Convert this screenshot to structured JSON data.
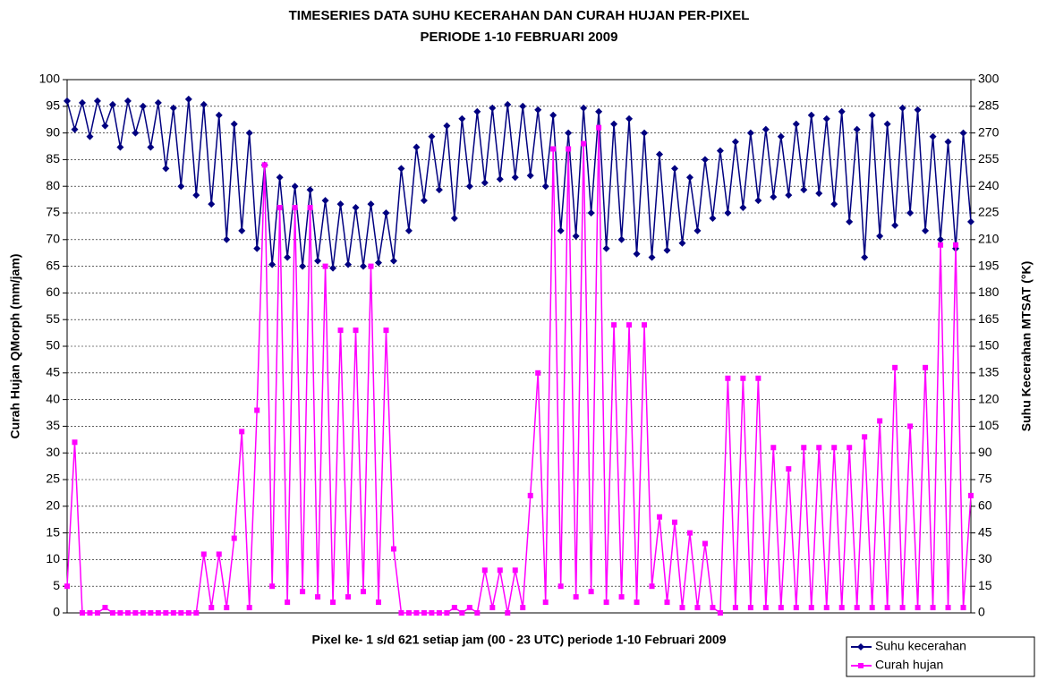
{
  "chart_data": {
    "type": "line",
    "title": "TIMESERIES DATA SUHU KECERAHAN DAN CURAH HUJAN PER-PIXEL",
    "subtitle": "PERIODE 1-10 FEBRUARI 2009",
    "xlabel": "Pixel ke- 1 s/d 621 setiap jam (00 - 23 UTC) periode 1-10 Februari 2009",
    "ylabel": "Curah Hujan QMorph (mm/jam)",
    "y2label": "Suhu Kecerahan MTSAT (°K)",
    "ylim": [
      0,
      100
    ],
    "yticks": [
      0,
      5,
      10,
      15,
      20,
      25,
      30,
      35,
      40,
      45,
      50,
      55,
      60,
      65,
      70,
      75,
      80,
      85,
      90,
      95,
      100
    ],
    "y2lim": [
      0,
      300
    ],
    "y2ticks": [
      0,
      15,
      30,
      45,
      60,
      75,
      90,
      105,
      120,
      135,
      150,
      165,
      180,
      195,
      210,
      225,
      240,
      255,
      270,
      285,
      300
    ],
    "grid": true,
    "legend": "bottom-right",
    "series": [
      {
        "name": "Suhu kecerahan",
        "color": "#000080",
        "marker": "diamond",
        "axis": "y2",
        "values": [
          288,
          272,
          287,
          268,
          288,
          274,
          286,
          262,
          288,
          270,
          285,
          262,
          287,
          250,
          284,
          240,
          289,
          235,
          286,
          230,
          280,
          210,
          275,
          215,
          270,
          205,
          252,
          196,
          245,
          200,
          240,
          195,
          238,
          198,
          232,
          194,
          230,
          196,
          228,
          195,
          230,
          197,
          225,
          198,
          250,
          215,
          262,
          232,
          268,
          238,
          274,
          222,
          278,
          240,
          282,
          242,
          284,
          244,
          286,
          245,
          285,
          246,
          283,
          240,
          280,
          215,
          270,
          212,
          284,
          225,
          282,
          205,
          275,
          210,
          278,
          202,
          270,
          200,
          258,
          204,
          250,
          208,
          245,
          215,
          255,
          222,
          260,
          225,
          265,
          228,
          270,
          232,
          272,
          234,
          268,
          235,
          275,
          238,
          280,
          236,
          278,
          230,
          282,
          220,
          272,
          200,
          280,
          212,
          275,
          218,
          284,
          225,
          283,
          215,
          268,
          210,
          265,
          205,
          270,
          220
        ]
      },
      {
        "name": "Curah hujan",
        "color": "#ff00ff",
        "marker": "square",
        "values": [
          5,
          32,
          0,
          0,
          0,
          1,
          0,
          0,
          0,
          0,
          0,
          0,
          0,
          0,
          0,
          0,
          0,
          0,
          11,
          1,
          11,
          1,
          14,
          34,
          1,
          38,
          84,
          5,
          76,
          2,
          76,
          4,
          76,
          3,
          65,
          2,
          53,
          3,
          53,
          4,
          65,
          2,
          53,
          12,
          0,
          0,
          0,
          0,
          0,
          0,
          0,
          1,
          0,
          1,
          0,
          8,
          1,
          8,
          0,
          8,
          1,
          22,
          45,
          2,
          87,
          5,
          87,
          3,
          88,
          4,
          91,
          2,
          54,
          3,
          54,
          2,
          54,
          5,
          18,
          2,
          17,
          1,
          15,
          1,
          13,
          1,
          0,
          44,
          1,
          44,
          1,
          44,
          1,
          31,
          1,
          27,
          1,
          31,
          1,
          31,
          1,
          31,
          1,
          31,
          1,
          33,
          1,
          36,
          1,
          46,
          1,
          35,
          1,
          46,
          1,
          69,
          1,
          69,
          1,
          22
        ]
      }
    ]
  }
}
